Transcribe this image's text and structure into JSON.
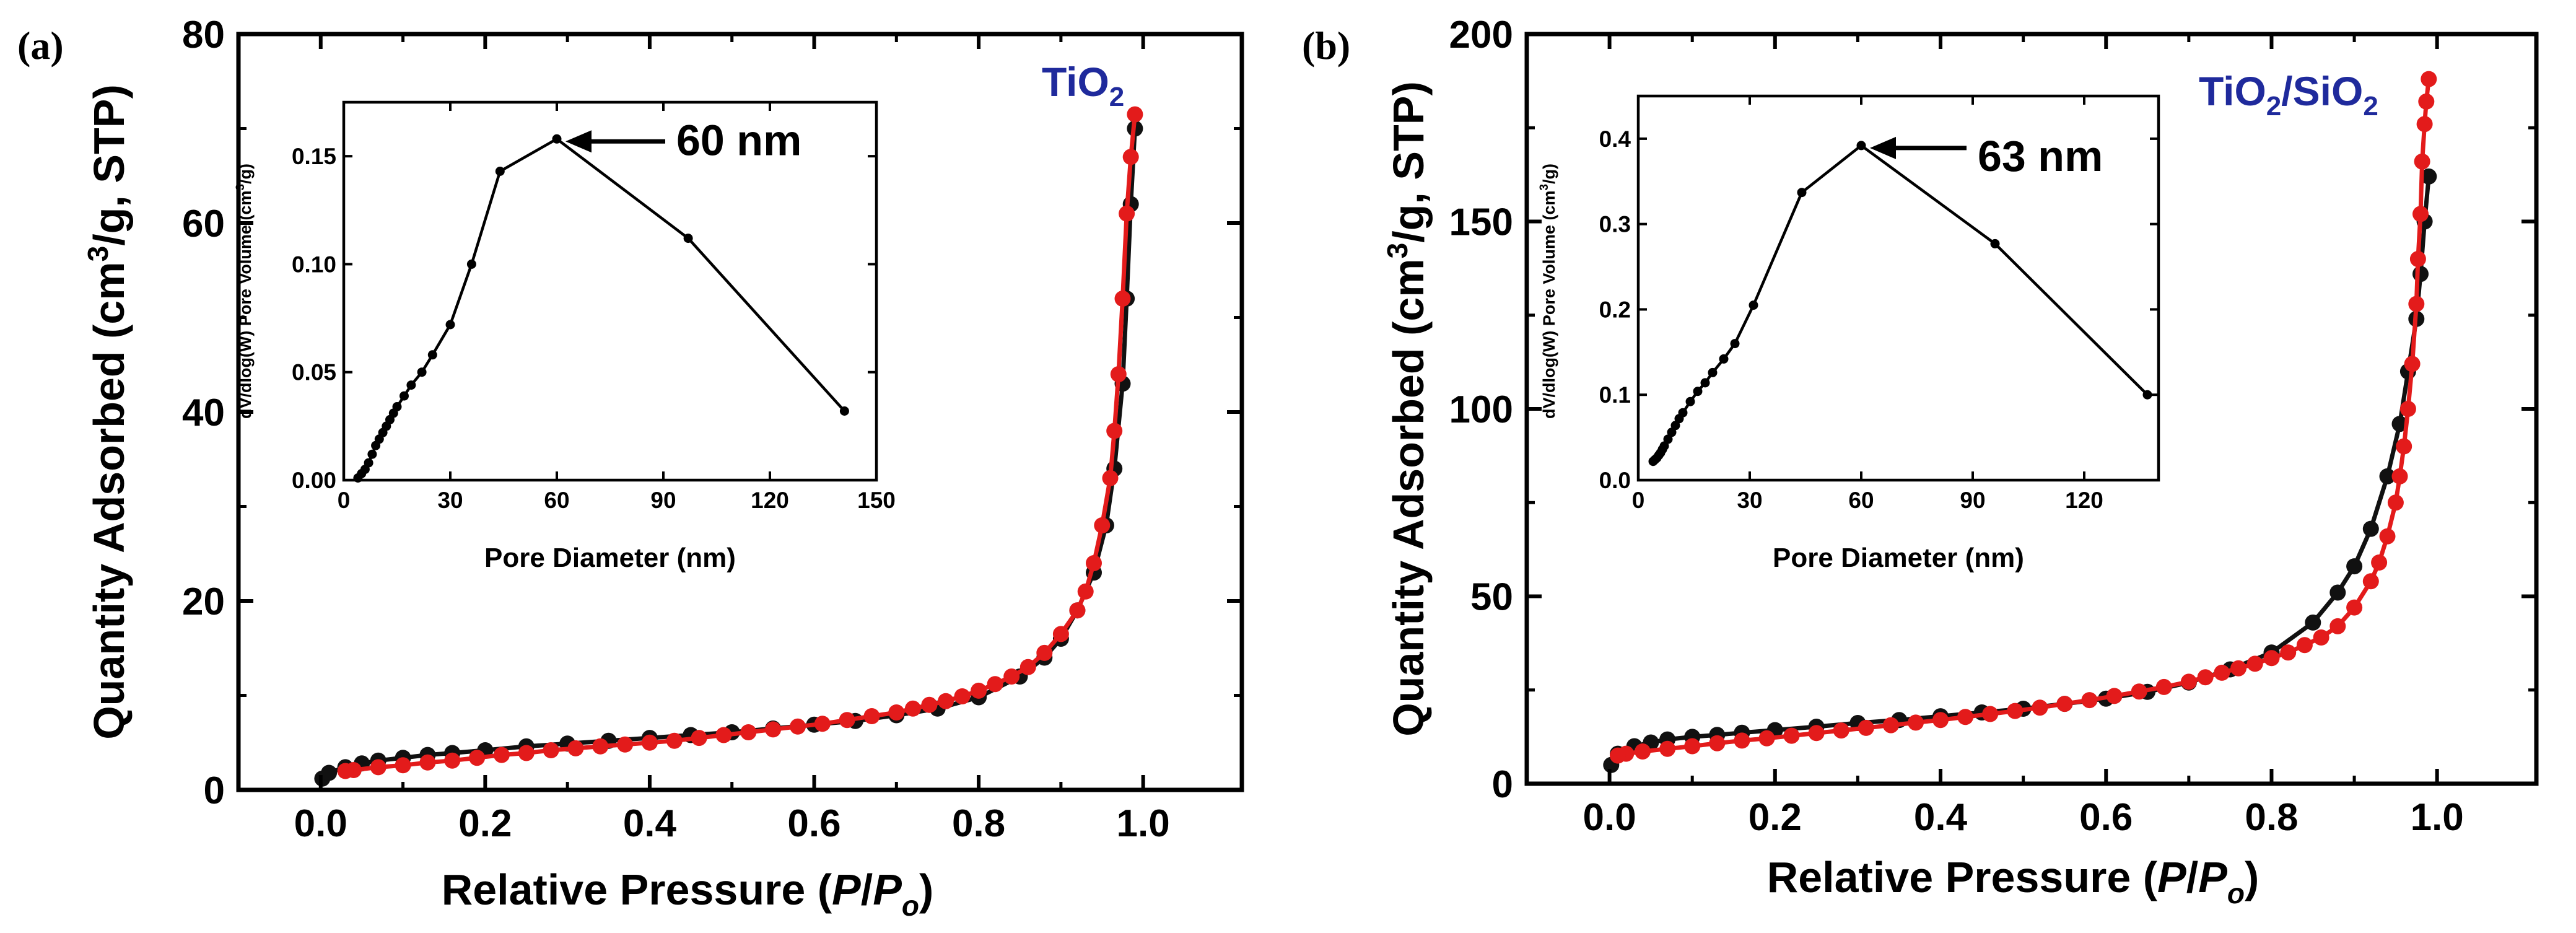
{
  "colors": {
    "adsorption": "#111111",
    "desorption": "#e31b1b",
    "material_label": "#1f2a9c",
    "axes": "#000000"
  },
  "chart_data": [
    {
      "panel_label": "(a)",
      "type": "scatter",
      "material": {
        "main": "TiO",
        "sub": "2"
      },
      "xlabel": {
        "text": "Relative Pressure (",
        "p": "P",
        "slash": "/",
        "p2": "P",
        "sub": "o",
        "close": ")"
      },
      "ylabel": {
        "pre": "Quantity Adsorbed (cm",
        "sup": "3",
        "post": "/g, STP)"
      },
      "xlim": [
        -0.1,
        1.12
      ],
      "ylim": [
        0,
        80
      ],
      "xticks": [
        "0.0",
        "0.2",
        "0.4",
        "0.6",
        "0.8",
        "1.0"
      ],
      "xtick_values": [
        0,
        0.2,
        0.4,
        0.6,
        0.8,
        1.0
      ],
      "yticks": [
        "0",
        "20",
        "40",
        "60",
        "80"
      ],
      "ytick_values": [
        0,
        20,
        40,
        60,
        80
      ],
      "series": [
        {
          "name": "adsorption",
          "x": [
            0.002,
            0.01,
            0.03,
            0.05,
            0.07,
            0.1,
            0.13,
            0.16,
            0.2,
            0.25,
            0.3,
            0.35,
            0.4,
            0.45,
            0.5,
            0.55,
            0.6,
            0.65,
            0.7,
            0.75,
            0.8,
            0.85,
            0.88,
            0.9,
            0.92,
            0.94,
            0.955,
            0.965,
            0.975,
            0.98,
            0.985,
            0.99
          ],
          "y": [
            1.2,
            1.8,
            2.4,
            2.8,
            3.1,
            3.4,
            3.7,
            3.9,
            4.2,
            4.6,
            4.9,
            5.2,
            5.5,
            5.8,
            6.1,
            6.5,
            6.9,
            7.3,
            7.9,
            8.6,
            9.8,
            12,
            14,
            16,
            19,
            23,
            28,
            34,
            43,
            52,
            62,
            70
          ]
        },
        {
          "name": "desorption",
          "x": [
            0.99,
            0.985,
            0.98,
            0.975,
            0.97,
            0.965,
            0.96,
            0.95,
            0.94,
            0.93,
            0.92,
            0.9,
            0.88,
            0.86,
            0.84,
            0.82,
            0.8,
            0.78,
            0.76,
            0.74,
            0.72,
            0.7,
            0.67,
            0.64,
            0.61,
            0.58,
            0.55,
            0.52,
            0.49,
            0.46,
            0.43,
            0.4,
            0.37,
            0.34,
            0.31,
            0.28,
            0.25,
            0.22,
            0.19,
            0.16,
            0.13,
            0.1,
            0.07,
            0.04,
            0.03
          ],
          "y": [
            71.5,
            67,
            61,
            52,
            44,
            38,
            33,
            28,
            24,
            21,
            19,
            16.5,
            14.5,
            13,
            12,
            11.2,
            10.5,
            9.9,
            9.4,
            9,
            8.6,
            8.2,
            7.8,
            7.4,
            7,
            6.7,
            6.4,
            6.1,
            5.8,
            5.5,
            5.2,
            5,
            4.8,
            4.6,
            4.4,
            4.2,
            3.9,
            3.7,
            3.4,
            3.1,
            2.9,
            2.6,
            2.4,
            2.1,
            2
          ]
        }
      ],
      "inset": {
        "xlabel": "Pore Diameter (nm)",
        "ylabel": {
          "pre": "dV/dlog(W) Pore Volume (cm",
          "sup": "3",
          "post": "/g)"
        },
        "xlim": [
          0,
          150
        ],
        "ylim": [
          0,
          0.175
        ],
        "xticks": [
          "0",
          "30",
          "60",
          "90",
          "120",
          "150"
        ],
        "xtick_values": [
          0,
          30,
          60,
          90,
          120,
          150
        ],
        "yticks": [
          "0.00",
          "0.05",
          "0.10",
          "0.15"
        ],
        "ytick_values": [
          0,
          0.05,
          0.1,
          0.15
        ],
        "x": [
          4,
          5,
          6,
          7,
          8,
          9,
          10,
          11,
          12,
          13,
          14,
          15,
          17,
          19,
          22,
          25,
          30,
          36,
          44,
          60,
          97,
          141
        ],
        "y": [
          0.001,
          0.003,
          0.005,
          0.008,
          0.012,
          0.016,
          0.019,
          0.022,
          0.025,
          0.028,
          0.031,
          0.034,
          0.039,
          0.044,
          0.05,
          0.058,
          0.072,
          0.1,
          0.143,
          0.158,
          0.112,
          0.032
        ],
        "annotation": {
          "text": "60 nm",
          "x": 60,
          "y": 0.158
        }
      }
    },
    {
      "panel_label": "(b)",
      "type": "scatter",
      "material": {
        "main": "TiO",
        "sub": "2",
        "slash": "/",
        "main2": "SiO",
        "sub2": "2"
      },
      "xlabel": {
        "text": "Relative Pressure (",
        "p": "P",
        "slash": "/",
        "p2": "P",
        "sub": "o",
        "close": ")"
      },
      "ylabel": {
        "pre": "Quantity Adsorbed (cm",
        "sup": "3",
        "post": "/g, STP)"
      },
      "xlim": [
        -0.1,
        1.12
      ],
      "ylim": [
        0,
        200
      ],
      "xticks": [
        "0.0",
        "0.2",
        "0.4",
        "0.6",
        "0.8",
        "1.0"
      ],
      "xtick_values": [
        0,
        0.2,
        0.4,
        0.6,
        0.8,
        1.0
      ],
      "yticks": [
        "0",
        "50",
        "100",
        "150",
        "200"
      ],
      "ytick_values": [
        0,
        50,
        100,
        150,
        200
      ],
      "series": [
        {
          "name": "adsorption",
          "x": [
            0.002,
            0.01,
            0.03,
            0.05,
            0.07,
            0.1,
            0.13,
            0.16,
            0.2,
            0.25,
            0.3,
            0.35,
            0.4,
            0.45,
            0.5,
            0.55,
            0.6,
            0.65,
            0.7,
            0.75,
            0.8,
            0.85,
            0.88,
            0.9,
            0.92,
            0.94,
            0.955,
            0.965,
            0.975,
            0.98,
            0.985,
            0.99
          ],
          "y": [
            5,
            8,
            10,
            11,
            11.8,
            12.5,
            13,
            13.6,
            14.3,
            15.2,
            16.2,
            17,
            18,
            19,
            20,
            21.3,
            22.7,
            24.5,
            27,
            30.5,
            35,
            43,
            51,
            58,
            68,
            82,
            96,
            110,
            124,
            136,
            150,
            162
          ]
        },
        {
          "name": "desorption",
          "x": [
            0.99,
            0.987,
            0.985,
            0.982,
            0.98,
            0.977,
            0.975,
            0.97,
            0.965,
            0.96,
            0.955,
            0.95,
            0.94,
            0.93,
            0.92,
            0.9,
            0.88,
            0.86,
            0.84,
            0.82,
            0.8,
            0.78,
            0.76,
            0.74,
            0.72,
            0.7,
            0.67,
            0.64,
            0.61,
            0.58,
            0.55,
            0.52,
            0.49,
            0.46,
            0.43,
            0.4,
            0.37,
            0.34,
            0.31,
            0.28,
            0.25,
            0.22,
            0.19,
            0.16,
            0.13,
            0.1,
            0.07,
            0.04,
            0.02,
            0.01
          ],
          "y": [
            188,
            182,
            176,
            166,
            152,
            140,
            128,
            112,
            100,
            90,
            82,
            75,
            66,
            59,
            54,
            47,
            42,
            39,
            37,
            35,
            33.5,
            32,
            30.8,
            29.6,
            28.4,
            27.2,
            25.8,
            24.6,
            23.4,
            22.3,
            21.3,
            20.3,
            19.4,
            18.6,
            17.8,
            17,
            16.3,
            15.6,
            14.9,
            14.2,
            13.5,
            12.8,
            12.1,
            11.5,
            10.8,
            10,
            9.3,
            8.6,
            8,
            7.5
          ]
        }
      ],
      "inset": {
        "xlabel": "Pore Diameter (nm)",
        "ylabel": {
          "pre": "dV/dlog(W) Pore Volume (cm",
          "sup": "3",
          "post": "/g)"
        },
        "xlim": [
          0,
          140
        ],
        "ylim": [
          0,
          0.45
        ],
        "xticks": [
          "0",
          "30",
          "60",
          "90",
          "120"
        ],
        "xtick_values": [
          0,
          30,
          60,
          90,
          120
        ],
        "yticks": [
          "0.0",
          "0.1",
          "0.2",
          "0.3",
          "0.4"
        ],
        "ytick_values": [
          0,
          0.1,
          0.2,
          0.3,
          0.4
        ],
        "x": [
          4,
          4.5,
          5,
          5.5,
          6,
          6.5,
          7,
          8,
          9,
          10,
          11,
          12,
          14,
          16,
          18,
          20,
          23,
          26,
          31,
          44,
          60,
          96,
          137
        ],
        "y": [
          0.022,
          0.024,
          0.026,
          0.029,
          0.032,
          0.036,
          0.04,
          0.048,
          0.056,
          0.064,
          0.072,
          0.079,
          0.092,
          0.104,
          0.114,
          0.126,
          0.142,
          0.16,
          0.205,
          0.337,
          0.392,
          0.277,
          0.1
        ],
        "annotation": {
          "text": "63 nm",
          "x": 60,
          "y": 0.392
        }
      }
    }
  ]
}
